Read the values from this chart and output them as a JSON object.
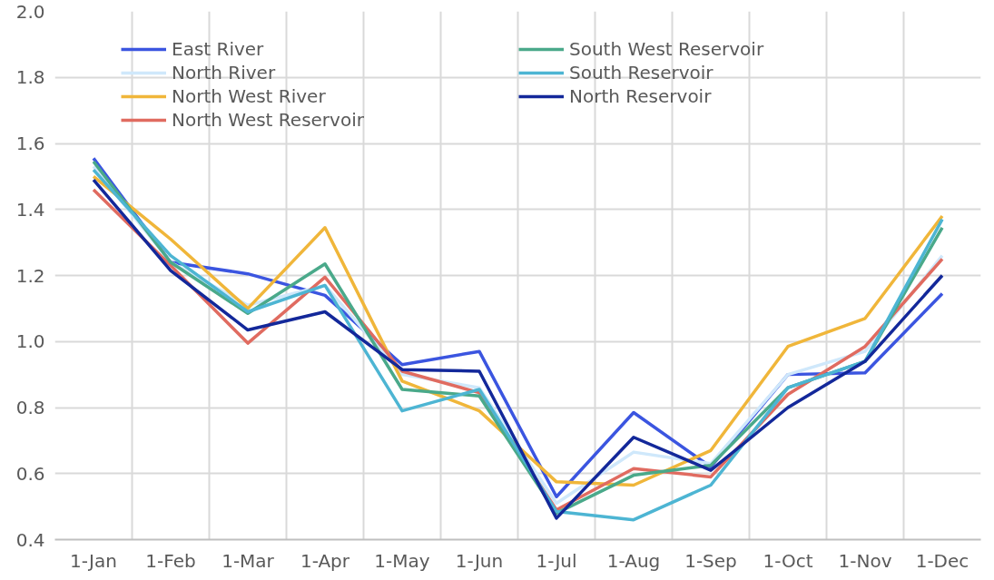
{
  "chart_data": {
    "type": "line",
    "categories": [
      "1-Jan",
      "1-Feb",
      "1-Mar",
      "1-Apr",
      "1-May",
      "1-Jun",
      "1-Jul",
      "1-Aug",
      "1-Sep",
      "1-Oct",
      "1-Nov",
      "1-Dec"
    ],
    "series": [
      {
        "name": "East River",
        "color": "#3b55e0",
        "values": [
          1.555,
          1.24,
          1.205,
          1.14,
          0.93,
          0.97,
          0.53,
          0.785,
          0.62,
          0.9,
          0.905,
          1.145
        ]
      },
      {
        "name": "North River",
        "color": "#cfe8fb",
        "values": [
          1.53,
          1.24,
          1.11,
          1.17,
          0.9,
          0.86,
          0.51,
          0.665,
          0.63,
          0.9,
          0.97,
          1.26
        ]
      },
      {
        "name": "North West River",
        "color": "#f0b63a",
        "values": [
          1.5,
          1.31,
          1.1,
          1.345,
          0.88,
          0.79,
          0.575,
          0.565,
          0.67,
          0.985,
          1.07,
          1.38
        ]
      },
      {
        "name": "North West Reservoir",
        "color": "#e06b60",
        "values": [
          1.46,
          1.23,
          0.995,
          1.195,
          0.91,
          0.845,
          0.49,
          0.615,
          0.59,
          0.84,
          0.985,
          1.25
        ]
      },
      {
        "name": "South West Reservoir",
        "color": "#4aa98a",
        "values": [
          1.545,
          1.24,
          1.085,
          1.235,
          0.855,
          0.835,
          0.48,
          0.595,
          0.625,
          0.86,
          0.94,
          1.345
        ]
      },
      {
        "name": "South Reservoir",
        "color": "#4db5d3",
        "values": [
          1.52,
          1.26,
          1.09,
          1.17,
          0.79,
          0.855,
          0.485,
          0.46,
          0.565,
          0.86,
          0.94,
          1.37
        ]
      },
      {
        "name": "North Reservoir",
        "color": "#13289a",
        "values": [
          1.49,
          1.215,
          1.035,
          1.09,
          0.915,
          0.91,
          0.465,
          0.71,
          0.61,
          0.8,
          0.94,
          1.2
        ]
      }
    ],
    "ylim": [
      0.4,
      2.0
    ],
    "yticks": [
      {
        "value": 0.4,
        "label": "0.4"
      },
      {
        "value": 0.6,
        "label": "0.6"
      },
      {
        "value": 0.8,
        "label": "0.8"
      },
      {
        "value": 1.0,
        "label": "1.0"
      },
      {
        "value": 1.2,
        "label": "1.2"
      },
      {
        "value": 1.4,
        "label": "1.4"
      },
      {
        "value": 1.6,
        "label": "1.6"
      },
      {
        "value": 1.8,
        "label": "1.8"
      },
      {
        "value": 2.0,
        "label": "2.0"
      }
    ],
    "grid": true,
    "legend": "top",
    "marker": "none",
    "line_style": "solid"
  }
}
